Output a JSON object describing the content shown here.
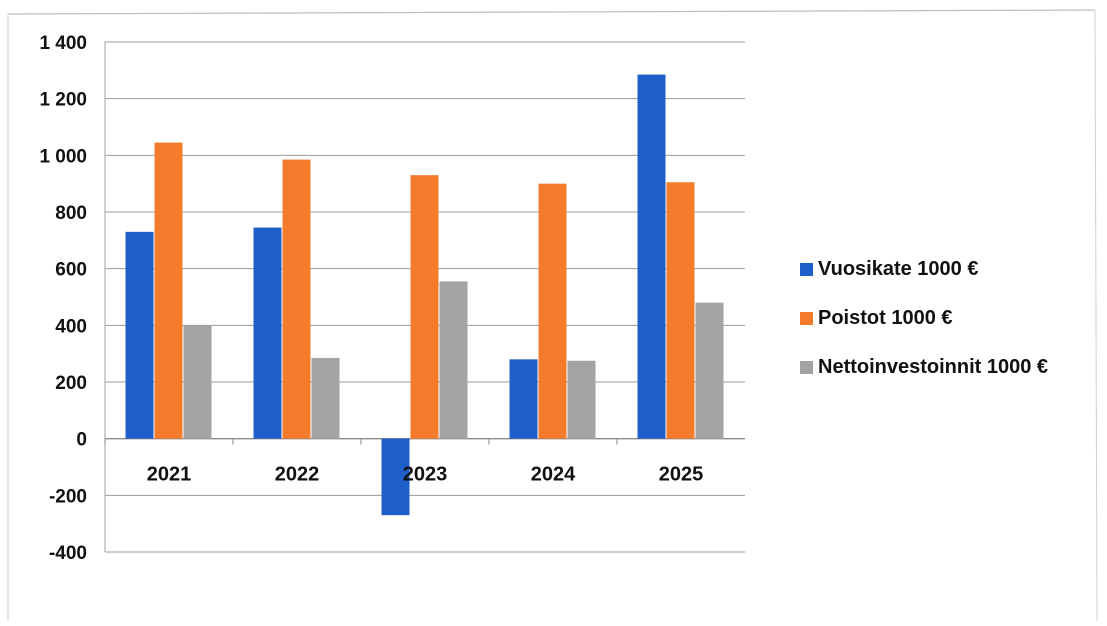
{
  "chart_data": {
    "type": "bar",
    "title": "",
    "xlabel": "",
    "ylabel": "",
    "categories": [
      "2021",
      "2022",
      "2023",
      "2024",
      "2025"
    ],
    "series": [
      {
        "name": "Vuosikate 1000 €",
        "color": "#1f5fc9",
        "values": [
          730,
          745,
          -270,
          280,
          1285
        ]
      },
      {
        "name": "Poistot 1000 €",
        "color": "#f47a2c",
        "values": [
          1045,
          985,
          930,
          900,
          905
        ]
      },
      {
        "name": "Nettoinvestoinnit 1000 €",
        "color": "#a3a3a3",
        "values": [
          400,
          285,
          555,
          275,
          480
        ]
      }
    ],
    "ylim": [
      -400,
      1400
    ],
    "yticks": [
      -400,
      -200,
      0,
      200,
      400,
      600,
      800,
      1000,
      1200,
      1400
    ],
    "ytick_labels": [
      "-400",
      "-200",
      "0",
      "200",
      "400",
      "600",
      "800",
      "1 000",
      "1 200",
      "1 400"
    ],
    "grid": true,
    "legend_position": "right"
  }
}
